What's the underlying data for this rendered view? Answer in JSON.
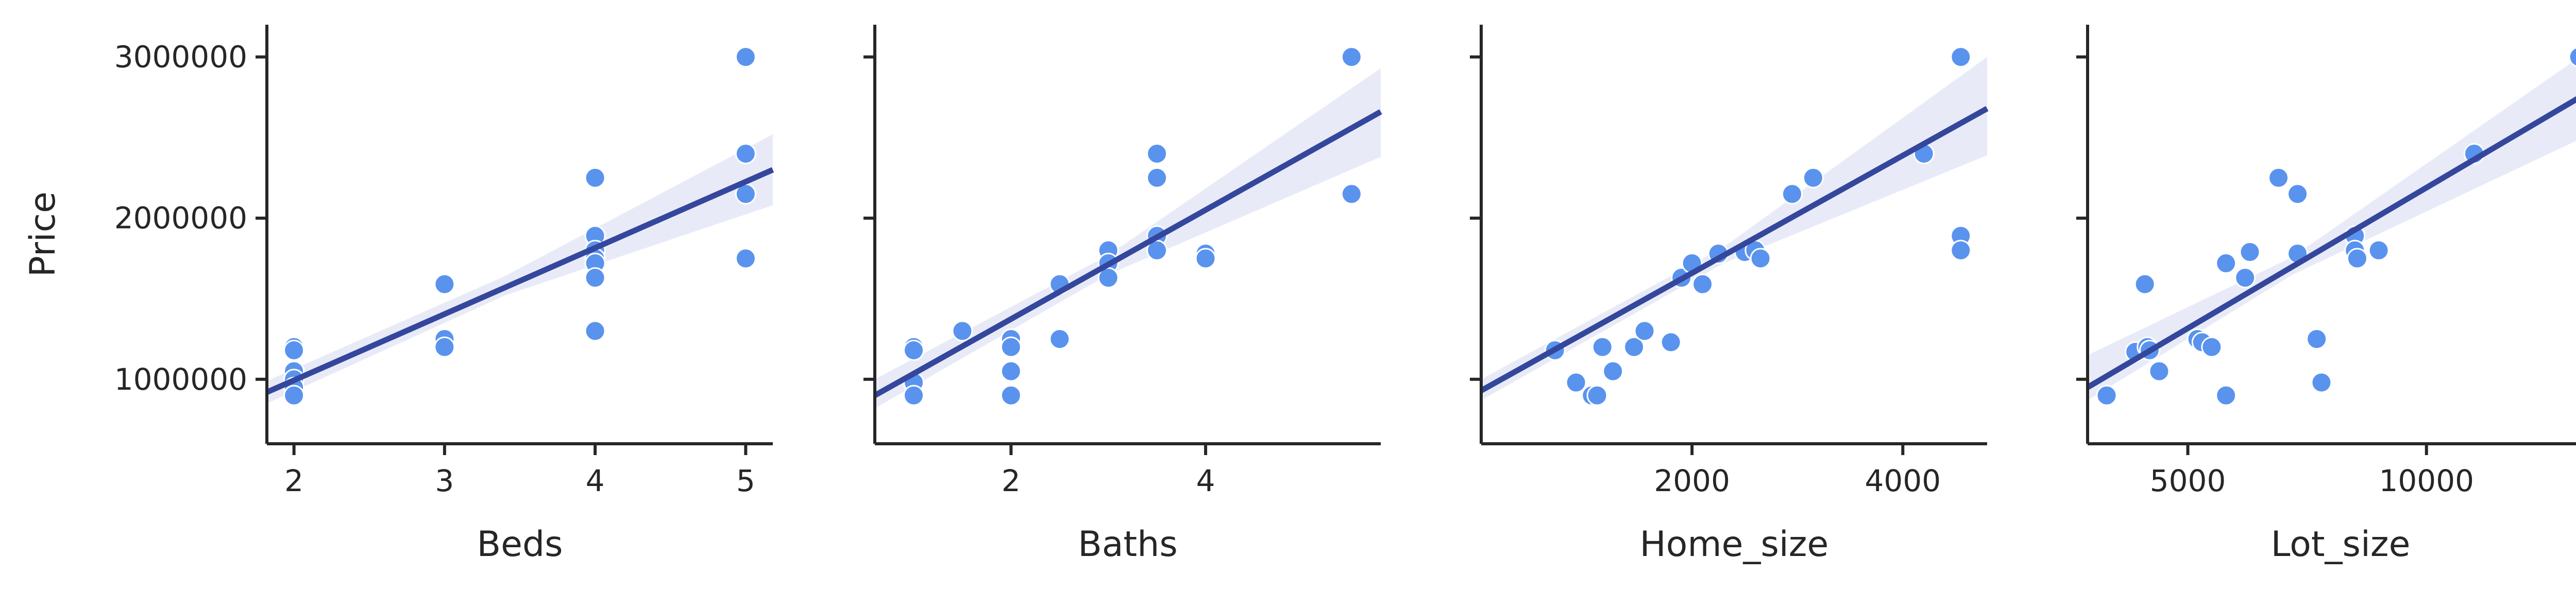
{
  "colors": {
    "points": "#5a93ee",
    "line": "#34479c",
    "band": "#7080cc",
    "axis": "#262626"
  },
  "chart_data": [
    {
      "type": "scatter",
      "xlabel": "Beds",
      "ylabel": "Price",
      "xlim": [
        1.82,
        5.18
      ],
      "ylim": [
        600000,
        3200000
      ],
      "xticks": [
        2,
        3,
        4,
        5
      ],
      "yticks": [
        1000000,
        2000000,
        3000000
      ],
      "x": [
        2,
        2,
        2,
        2,
        2,
        2,
        3,
        3,
        3,
        4,
        4,
        4,
        4,
        4,
        4,
        4,
        5,
        5,
        5,
        5
      ],
      "y": [
        1200000,
        1180000,
        1050000,
        1000000,
        950000,
        900000,
        1590000,
        1250000,
        1200000,
        2250000,
        1890000,
        1800000,
        1750000,
        1720000,
        1630000,
        1300000,
        3000000,
        2400000,
        2150000,
        1750000
      ],
      "regression": {
        "x0": 1.82,
        "y0": 920000,
        "x1": 5.18,
        "y1": 2300000
      },
      "band": {
        "lower": [
          [
            1.82,
            850000
          ],
          [
            3.4,
            1520000
          ],
          [
            5.18,
            2080000
          ]
        ],
        "upper": [
          [
            1.82,
            990000
          ],
          [
            3.4,
            1640000
          ],
          [
            5.18,
            2520000
          ]
        ]
      }
    },
    {
      "type": "scatter",
      "xlabel": "Baths",
      "xlim": [
        0.6,
        5.8
      ],
      "ylim": [
        600000,
        3200000
      ],
      "xticks": [
        2,
        4
      ],
      "yticks": [
        1000000,
        2000000,
        3000000
      ],
      "x": [
        1,
        1,
        1,
        1,
        1.5,
        2,
        2,
        2,
        2,
        2.5,
        2.5,
        3,
        3,
        3,
        3.5,
        3.5,
        3.5,
        3.5,
        4,
        4,
        5.5,
        5.5
      ],
      "y": [
        1200000,
        1180000,
        980000,
        900000,
        1300000,
        1250000,
        1200000,
        1050000,
        900000,
        1590000,
        1250000,
        1800000,
        1720000,
        1630000,
        2400000,
        2250000,
        1890000,
        1800000,
        1780000,
        1750000,
        3000000,
        2150000
      ],
      "regression": {
        "x0": 0.6,
        "y0": 900000,
        "x1": 5.8,
        "y1": 2660000
      },
      "band": {
        "lower": [
          [
            0.6,
            820000
          ],
          [
            3.0,
            1650000
          ],
          [
            5.8,
            2380000
          ]
        ],
        "upper": [
          [
            0.6,
            1000000
          ],
          [
            3.0,
            1770000
          ],
          [
            5.8,
            2930000
          ]
        ]
      }
    },
    {
      "type": "scatter",
      "xlabel": "Home_size",
      "xlim": [
        0,
        4800
      ],
      "ylim": [
        600000,
        3200000
      ],
      "xticks": [
        2000,
        4000
      ],
      "yticks": [
        1000000,
        2000000,
        3000000
      ],
      "x": [
        700,
        900,
        1050,
        1100,
        1150,
        1250,
        1450,
        1550,
        1800,
        1900,
        2000,
        2100,
        2250,
        2500,
        2600,
        2650,
        2950,
        3150,
        4200,
        4550,
        4550,
        4550
      ],
      "y": [
        1180000,
        980000,
        900000,
        900000,
        1200000,
        1050000,
        1200000,
        1300000,
        1230000,
        1630000,
        1720000,
        1590000,
        1780000,
        1790000,
        1800000,
        1750000,
        2150000,
        2250000,
        2400000,
        3000000,
        1890000,
        1800000
      ],
      "regression": {
        "x0": 0,
        "y0": 930000,
        "x1": 4800,
        "y1": 2680000
      },
      "band": {
        "lower": [
          [
            0,
            870000
          ],
          [
            2300,
            1720000
          ],
          [
            4800,
            2390000
          ]
        ],
        "upper": [
          [
            0,
            1000000
          ],
          [
            2300,
            1820000
          ],
          [
            4800,
            3000000
          ]
        ]
      }
    },
    {
      "type": "scatter",
      "xlabel": "Lot_size",
      "xlim": [
        2900,
        13500
      ],
      "ylim": [
        600000,
        3200000
      ],
      "xticks": [
        5000,
        10000
      ],
      "yticks": [
        1000000,
        2000000,
        3000000
      ],
      "x": [
        3300,
        3900,
        4100,
        4150,
        4200,
        4400,
        5200,
        5300,
        5500,
        5800,
        5800,
        6200,
        6300,
        6900,
        7300,
        7300,
        7700,
        7800,
        8500,
        8500,
        8550,
        9000,
        11000,
        13200
      ],
      "y": [
        900000,
        1170000,
        1590000,
        1200000,
        1180000,
        1050000,
        1250000,
        1230000,
        1200000,
        1720000,
        900000,
        1630000,
        1790000,
        2250000,
        2150000,
        1780000,
        1250000,
        980000,
        1890000,
        1800000,
        1750000,
        1800000,
        2400000,
        3000000
      ],
      "regression": {
        "x0": 2900,
        "y0": 950000,
        "x1": 13500,
        "y1": 2800000
      },
      "band": {
        "lower": [
          [
            2900,
            870000
          ],
          [
            7200,
            1650000
          ],
          [
            13500,
            2530000
          ]
        ],
        "upper": [
          [
            2900,
            1150000
          ],
          [
            7200,
            1760000
          ],
          [
            13500,
            3060000
          ]
        ]
      }
    }
  ]
}
